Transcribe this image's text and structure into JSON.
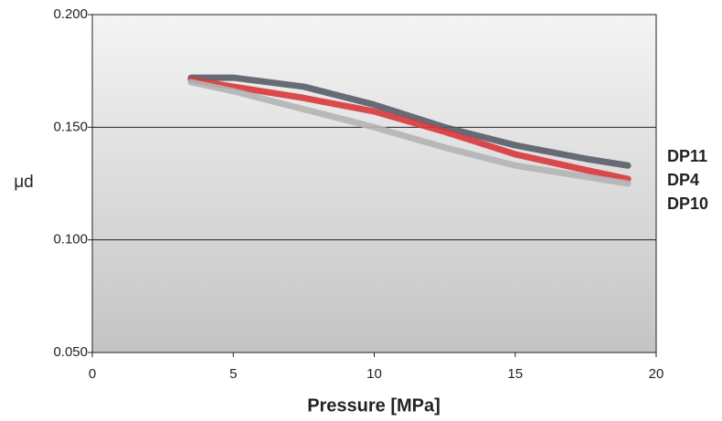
{
  "chart_data": {
    "type": "line",
    "x_label": "Pressure [MPa]",
    "y_label": "μd",
    "xlim": [
      0,
      20
    ],
    "xticks": [
      0,
      5,
      10,
      15,
      20
    ],
    "ylim": [
      0.05,
      0.2
    ],
    "yticks": [
      {
        "value": 0.05,
        "label": "0.050"
      },
      {
        "value": 0.1,
        "label": "0.100"
      },
      {
        "value": 0.15,
        "label": "0.150"
      },
      {
        "value": 0.2,
        "label": "0.200"
      }
    ],
    "grid": true,
    "legend": "right",
    "series": [
      {
        "name": "DP11",
        "color": "#585d68",
        "x": [
          3.5,
          5,
          7.5,
          10,
          12.5,
          15,
          17.5,
          19
        ],
        "values": [
          0.172,
          0.172,
          0.168,
          0.16,
          0.15,
          0.142,
          0.136,
          0.133
        ]
      },
      {
        "name": "DP4",
        "color": "#d8383c",
        "x": [
          3.5,
          5,
          7.5,
          10,
          12.5,
          15,
          17.5,
          19
        ],
        "values": [
          0.171,
          0.168,
          0.163,
          0.157,
          0.148,
          0.138,
          0.131,
          0.127
        ]
      },
      {
        "name": "DP10",
        "color": "#b4b4b4",
        "x": [
          3.5,
          5,
          7.5,
          10,
          12.5,
          15,
          17.5,
          19
        ],
        "values": [
          0.17,
          0.166,
          0.158,
          0.15,
          0.141,
          0.133,
          0.128,
          0.125
        ]
      }
    ]
  }
}
